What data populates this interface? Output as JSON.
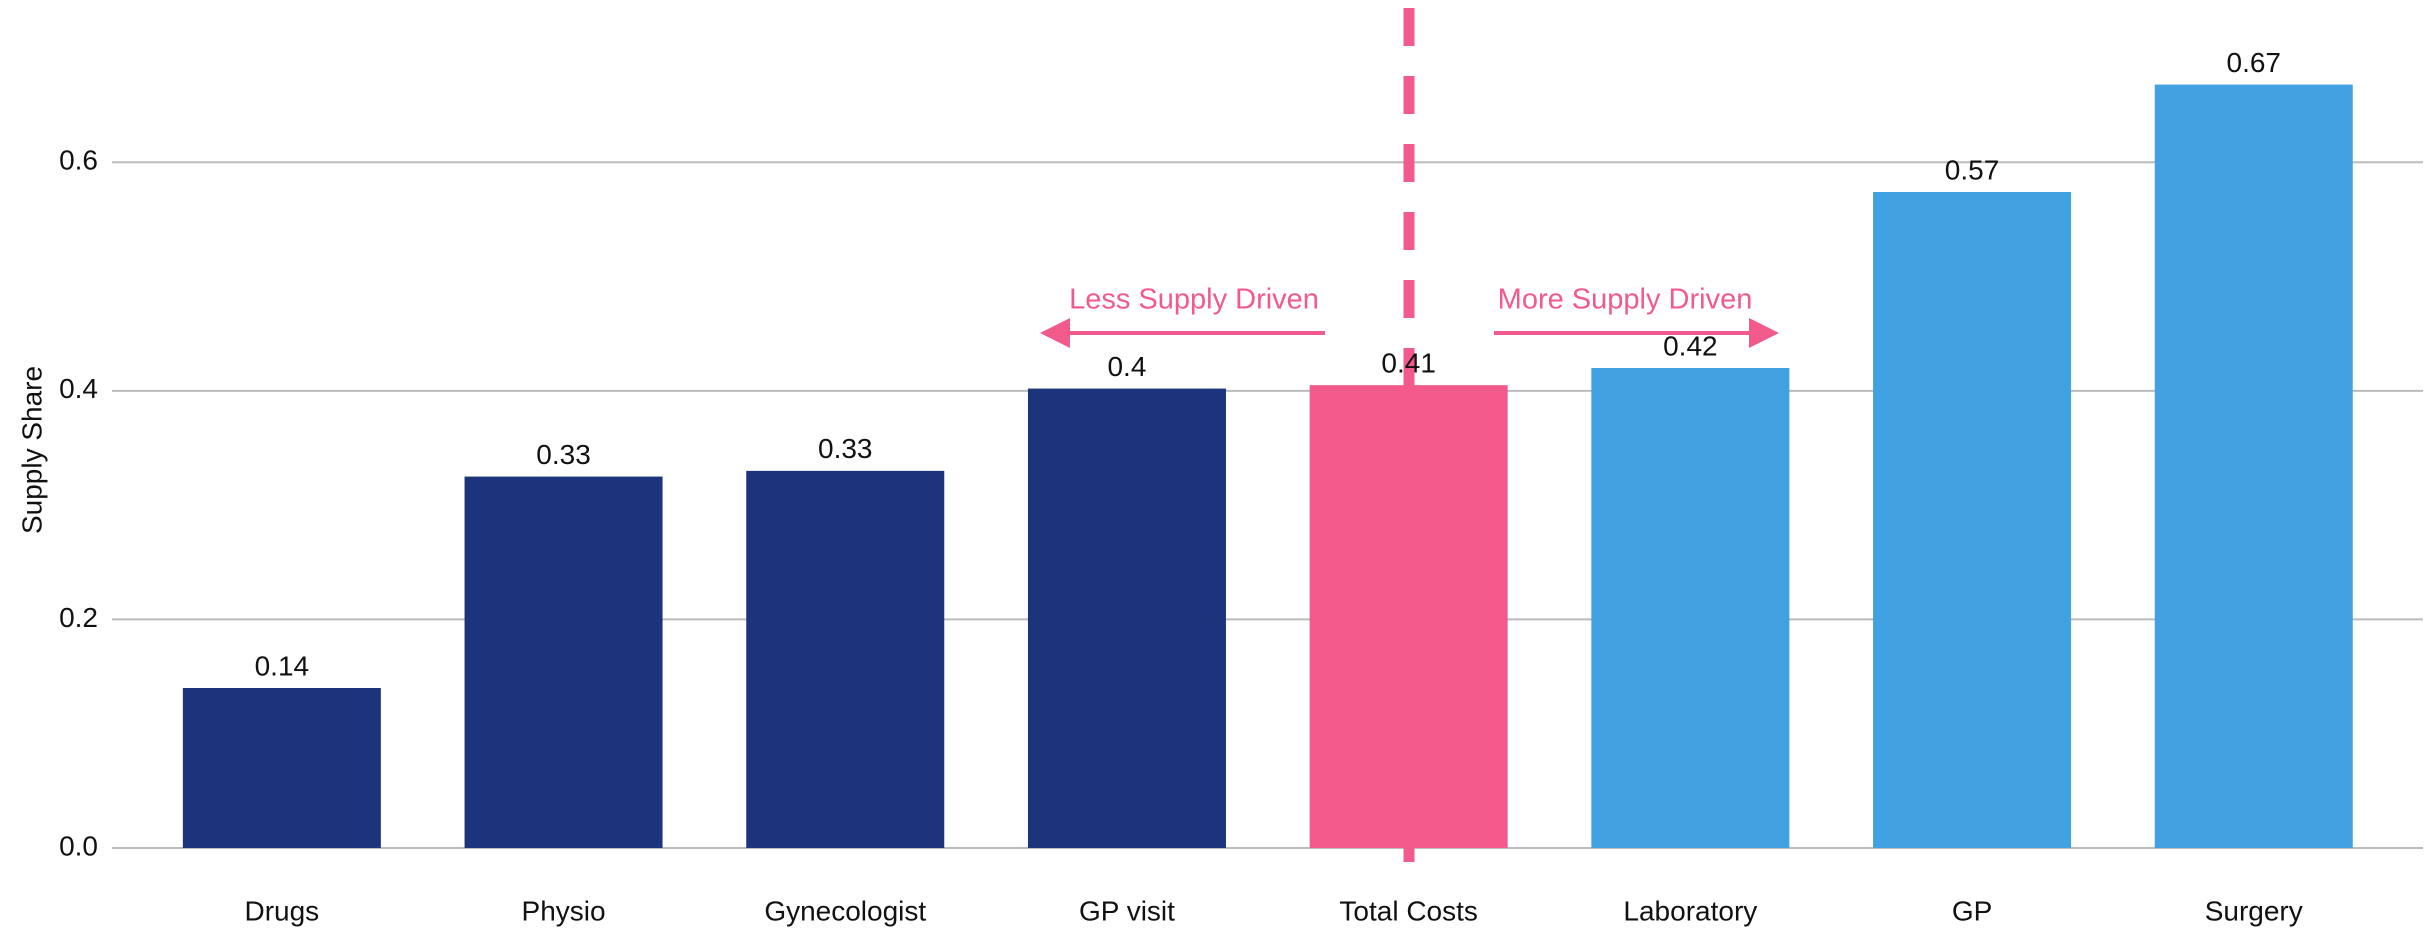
{
  "chart_data": {
    "type": "bar",
    "y_label": "Supply Share",
    "categories": [
      "Drugs",
      "Physio",
      "Gynecologist",
      "GP visit",
      "Total Costs",
      "Laboratory",
      "GP",
      "Surgery"
    ],
    "values": [
      0.14,
      0.325,
      0.33,
      0.402,
      0.405,
      0.42,
      0.574,
      0.668
    ],
    "value_labels": [
      "0.14",
      "0.33",
      "0.33",
      "0.4",
      "0.41",
      "0.42",
      "0.57",
      "0.67"
    ],
    "colors": [
      "#1c347c",
      "#1c347c",
      "#1c347c",
      "#1c347c",
      "#f25a8c",
      "#42a1e0",
      "#42a1e0",
      "#42a1e0"
    ],
    "ylim": [
      -0.035,
      0.735
    ],
    "yticks": [
      {
        "value": 0,
        "label": "0.0"
      },
      0.2,
      0.4,
      0.6
    ],
    "grid": true,
    "annotations": [
      "Less Supply Driven",
      "More Supply Driven"
    ]
  }
}
